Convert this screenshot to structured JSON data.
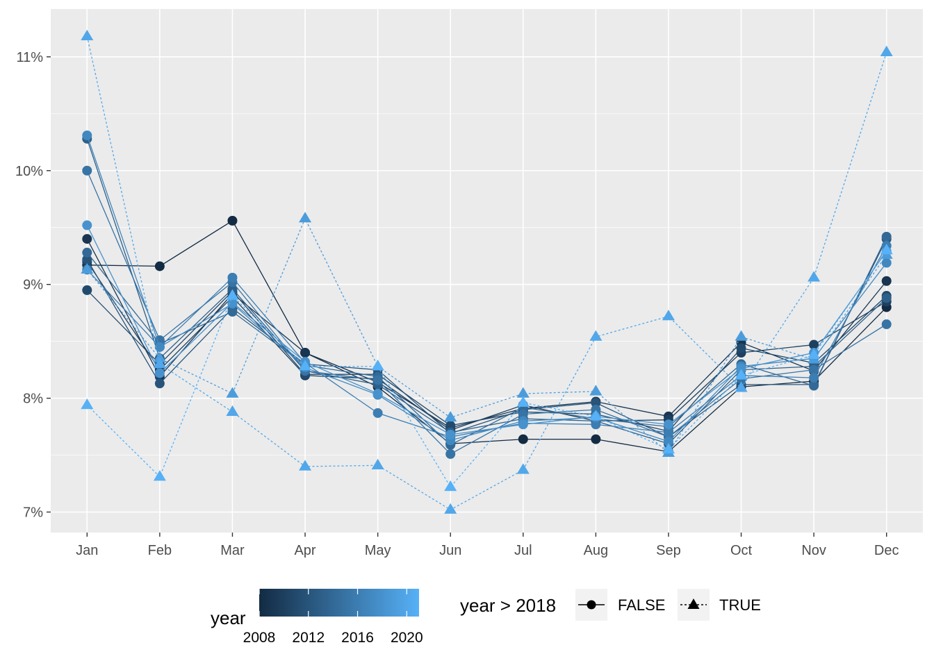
{
  "chart_data": {
    "type": "line",
    "categories": [
      "Jan",
      "Feb",
      "Mar",
      "Apr",
      "May",
      "Jun",
      "Jul",
      "Aug",
      "Sep",
      "Oct",
      "Nov",
      "Dec"
    ],
    "y_ticks": [
      "7%",
      "8%",
      "9%",
      "10%",
      "11%"
    ],
    "y_tick_values": [
      7,
      8,
      9,
      10,
      11
    ],
    "ylim": [
      6.82,
      11.42
    ],
    "y_unit": "%",
    "grid": true,
    "panel_background": "#EBEBEB",
    "grid_color": "#FFFFFF",
    "color_low": "#132B43",
    "color_high": "#56B1F7",
    "series": [
      {
        "year": 2008,
        "values": [
          9.17,
          9.16,
          9.56,
          8.4,
          8.1,
          7.6,
          7.64,
          7.64,
          7.53,
          8.1,
          8.15,
          8.8
        ]
      },
      {
        "year": 2009,
        "values": [
          9.4,
          8.19,
          8.92,
          8.4,
          8.14,
          7.74,
          7.91,
          7.97,
          7.84,
          8.49,
          8.24,
          9.03
        ]
      },
      {
        "year": 2010,
        "values": [
          9.2,
          8.25,
          8.89,
          8.2,
          8.17,
          7.72,
          7.94,
          7.8,
          7.81,
          8.4,
          8.47,
          8.85
        ]
      },
      {
        "year": 2011,
        "values": [
          8.95,
          8.3,
          8.94,
          8.21,
          8.21,
          7.76,
          7.88,
          7.86,
          7.71,
          8.44,
          8.31,
          8.9
        ]
      },
      {
        "year": 2012,
        "values": [
          9.22,
          8.13,
          8.79,
          8.3,
          8.25,
          7.69,
          7.9,
          7.96,
          7.66,
          8.12,
          8.12,
          9.4
        ]
      },
      {
        "year": 2013,
        "values": [
          10.28,
          8.35,
          8.96,
          8.24,
          8.12,
          7.7,
          7.82,
          7.8,
          7.6,
          8.25,
          8.28,
          8.88
        ]
      },
      {
        "year": 2014,
        "values": [
          9.28,
          8.48,
          8.76,
          8.29,
          8.19,
          7.59,
          7.92,
          7.82,
          7.75,
          8.3,
          8.11,
          9.42
        ]
      },
      {
        "year": 2015,
        "values": [
          10.0,
          8.51,
          9.02,
          8.24,
          8.16,
          7.51,
          7.86,
          7.9,
          7.66,
          8.17,
          8.25,
          8.65
        ]
      },
      {
        "year": 2016,
        "values": [
          9.13,
          8.45,
          9.06,
          8.31,
          7.87,
          7.66,
          7.78,
          7.77,
          7.7,
          8.2,
          8.18,
          9.34
        ]
      },
      {
        "year": 2017,
        "values": [
          10.31,
          8.45,
          8.83,
          8.27,
          8.03,
          7.63,
          7.8,
          7.83,
          7.62,
          8.28,
          8.35,
          9.19
        ]
      },
      {
        "year": 2018,
        "values": [
          9.52,
          8.22,
          8.84,
          8.32,
          8.04,
          7.68,
          7.77,
          7.84,
          7.77,
          8.26,
          8.4,
          9.29
        ]
      },
      {
        "year": 2019,
        "values": [
          9.13,
          8.35,
          8.04,
          9.58,
          8.28,
          7.83,
          8.04,
          8.06,
          7.52,
          8.54,
          8.34,
          9.26
        ]
      },
      {
        "year": 2020,
        "values": [
          11.18,
          8.3,
          7.88,
          7.4,
          7.41,
          7.02,
          7.37,
          8.54,
          8.72,
          8.09,
          9.06,
          11.04
        ]
      },
      {
        "year": 2021,
        "values": [
          7.94,
          7.31,
          8.9,
          8.28,
          8.28,
          7.22,
          7.96,
          7.84,
          7.55,
          8.2,
          8.38,
          9.3
        ]
      }
    ]
  },
  "legend": {
    "colorbar_title": "year",
    "colorbar_labels": [
      "2008",
      "2012",
      "2016",
      "2020"
    ],
    "shape_title": "year > 2018",
    "shape_false_label": "FALSE",
    "shape_true_label": "TRUE"
  }
}
